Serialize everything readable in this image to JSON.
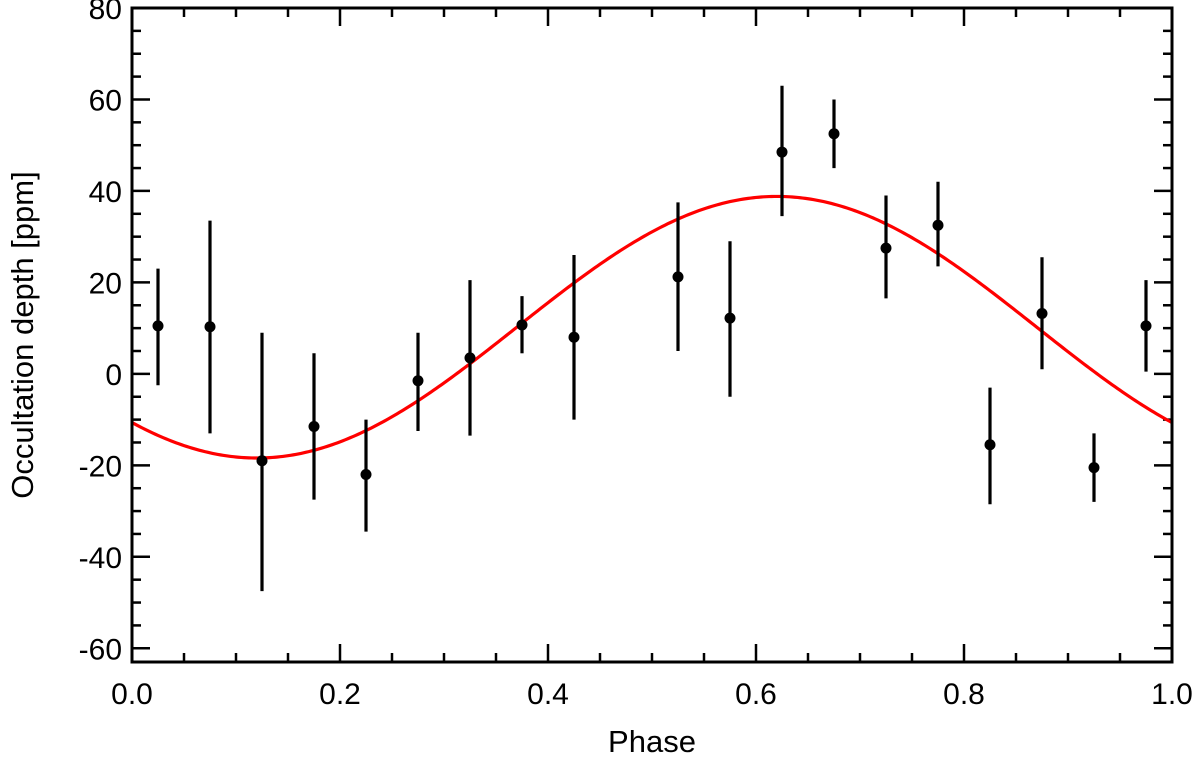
{
  "chart_data": {
    "type": "scatter",
    "title": "",
    "xlabel": "Phase",
    "ylabel": "Occultation depth [ppm]",
    "xlim": [
      0.0,
      1.0
    ],
    "ylim": [
      -63,
      80
    ],
    "x_ticks": [
      0.0,
      0.2,
      0.4,
      0.6,
      0.8,
      1.0
    ],
    "x_tick_labels": [
      "0.0",
      "0.2",
      "0.4",
      "0.6",
      "0.8",
      "1.0"
    ],
    "y_ticks": [
      -60,
      -40,
      -20,
      0,
      20,
      40,
      60,
      80
    ],
    "y_tick_labels": [
      "-60",
      "-40",
      "-20",
      "0",
      "20",
      "40",
      "60",
      "80"
    ],
    "grid": false,
    "series": [
      {
        "type": "scatter-errorbar",
        "color": "#000000",
        "points": [
          {
            "x": 0.025,
            "y": 10.5,
            "ylo": -2.5,
            "yhi": 23
          },
          {
            "x": 0.075,
            "y": 10.3,
            "ylo": -13,
            "yhi": 33.5
          },
          {
            "x": 0.125,
            "y": -19,
            "ylo": -47.5,
            "yhi": 9
          },
          {
            "x": 0.175,
            "y": -11.5,
            "ylo": -27.5,
            "yhi": 4.5
          },
          {
            "x": 0.225,
            "y": -22,
            "ylo": -34.5,
            "yhi": -10
          },
          {
            "x": 0.275,
            "y": -1.5,
            "ylo": -12.5,
            "yhi": 9
          },
          {
            "x": 0.325,
            "y": 3.5,
            "ylo": -13.5,
            "yhi": 20.5
          },
          {
            "x": 0.375,
            "y": 10.7,
            "ylo": 4.5,
            "yhi": 17
          },
          {
            "x": 0.425,
            "y": 8,
            "ylo": -10,
            "yhi": 26
          },
          {
            "x": 0.525,
            "y": 21.2,
            "ylo": 5,
            "yhi": 37.5
          },
          {
            "x": 0.575,
            "y": 12.2,
            "ylo": -5,
            "yhi": 29
          },
          {
            "x": 0.625,
            "y": 48.5,
            "ylo": 34.5,
            "yhi": 63
          },
          {
            "x": 0.675,
            "y": 52.5,
            "ylo": 45,
            "yhi": 60
          },
          {
            "x": 0.725,
            "y": 27.5,
            "ylo": 16.5,
            "yhi": 39
          },
          {
            "x": 0.775,
            "y": 32.5,
            "ylo": 23.5,
            "yhi": 42
          },
          {
            "x": 0.825,
            "y": -15.5,
            "ylo": -28.5,
            "yhi": -3
          },
          {
            "x": 0.875,
            "y": 13.2,
            "ylo": 1,
            "yhi": 25.5
          },
          {
            "x": 0.925,
            "y": -20.5,
            "ylo": -28,
            "yhi": -13
          },
          {
            "x": 0.975,
            "y": 10.5,
            "ylo": 0.5,
            "yhi": 20.5
          }
        ]
      },
      {
        "type": "line",
        "color": "#ff0000",
        "model": "sinusoid",
        "mean": 10.2,
        "amplitude": 28.6,
        "peak_phase": 0.62
      }
    ]
  }
}
